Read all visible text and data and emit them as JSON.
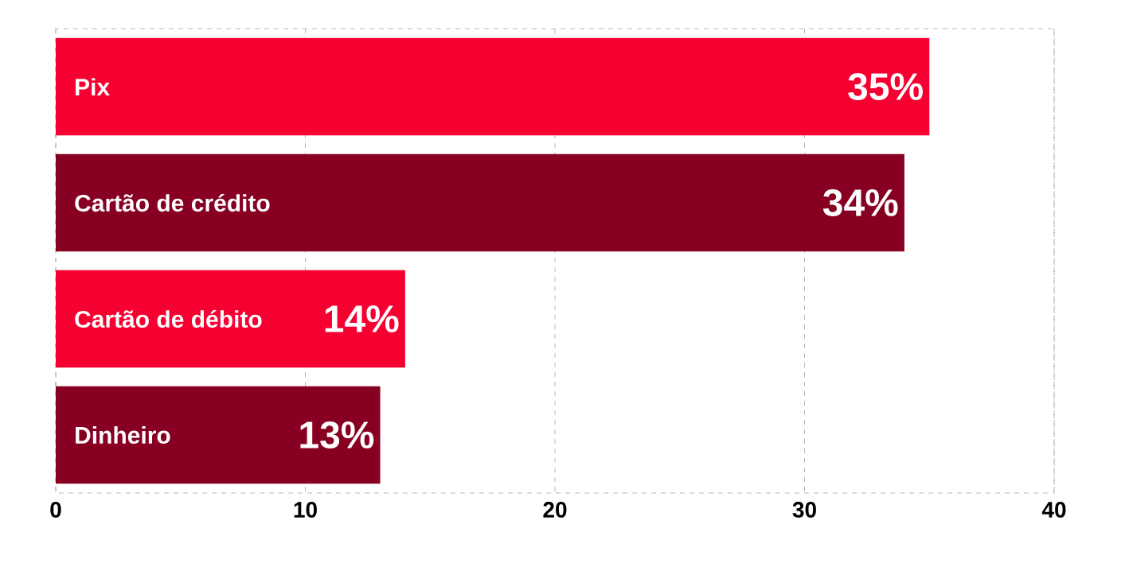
{
  "chart_data": {
    "type": "bar",
    "orientation": "horizontal",
    "categories": [
      "Pix",
      "Cartão de crédito",
      "Cartão de débito",
      "Dinheiro"
    ],
    "values": [
      35,
      34,
      14,
      13
    ],
    "value_labels": [
      "35%",
      "34%",
      "14%",
      "13%"
    ],
    "colors": [
      "#f50031",
      "#870022",
      "#f50031",
      "#870022"
    ],
    "xlim": [
      0,
      40
    ],
    "xticks": [
      0,
      10,
      20,
      30,
      40
    ],
    "grid": true,
    "tick_labels": "x"
  }
}
